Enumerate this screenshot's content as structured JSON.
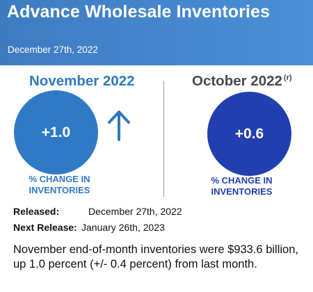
{
  "header": {
    "title": "Advance Wholesale Inventories",
    "date": "December 27th, 2022"
  },
  "current": {
    "period": "November 2022",
    "value": "+1.0",
    "caption_line1": "% CHANGE IN",
    "caption_line2": "INVENTORIES",
    "direction_icon": "arrow-up-icon",
    "accent_color": "#2f79c7"
  },
  "previous": {
    "period": "October 2022",
    "revised_marker": "(r)",
    "value": "+0.6",
    "caption_line1": "% CHANGE IN",
    "caption_line2": "INVENTORIES",
    "accent_color": "#223fb0"
  },
  "release": {
    "released_label": "Released",
    "released_value": "December 27th, 2022",
    "next_label": "Next Release",
    "next_value": "January 26th, 2023"
  },
  "summary": "November end-of-month inventories were $933.6 billion, up 1.0 percent (+/- 0.4 percent) from last month."
}
